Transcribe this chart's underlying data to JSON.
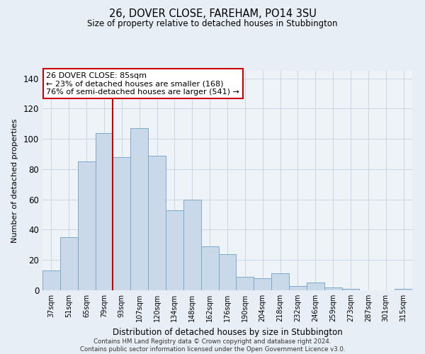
{
  "title": "26, DOVER CLOSE, FAREHAM, PO14 3SU",
  "subtitle": "Size of property relative to detached houses in Stubbington",
  "xlabel": "Distribution of detached houses by size in Stubbington",
  "ylabel": "Number of detached properties",
  "bar_labels": [
    "37sqm",
    "51sqm",
    "65sqm",
    "79sqm",
    "93sqm",
    "107sqm",
    "120sqm",
    "134sqm",
    "148sqm",
    "162sqm",
    "176sqm",
    "190sqm",
    "204sqm",
    "218sqm",
    "232sqm",
    "246sqm",
    "259sqm",
    "273sqm",
    "287sqm",
    "301sqm",
    "315sqm"
  ],
  "bar_values": [
    13,
    35,
    85,
    104,
    88,
    107,
    89,
    53,
    60,
    29,
    24,
    9,
    8,
    11,
    3,
    5,
    2,
    1,
    0,
    0,
    1
  ],
  "bar_color": "#c9d9ea",
  "bar_edge_color": "#7aaacb",
  "vline_x_index": 3,
  "vline_color": "#cc0000",
  "annotation_title": "26 DOVER CLOSE: 85sqm",
  "annotation_line1": "← 23% of detached houses are smaller (168)",
  "annotation_line2": "76% of semi-detached houses are larger (541) →",
  "annotation_box_color": "#ffffff",
  "annotation_box_edge": "#cc0000",
  "ylim": [
    0,
    145
  ],
  "yticks": [
    0,
    20,
    40,
    60,
    80,
    100,
    120,
    140
  ],
  "footer_line1": "Contains HM Land Registry data © Crown copyright and database right 2024.",
  "footer_line2": "Contains public sector information licensed under the Open Government Licence v3.0.",
  "bg_color": "#e8eef5",
  "plot_bg_color": "#eef3f8",
  "grid_color": "#c5d3e0"
}
